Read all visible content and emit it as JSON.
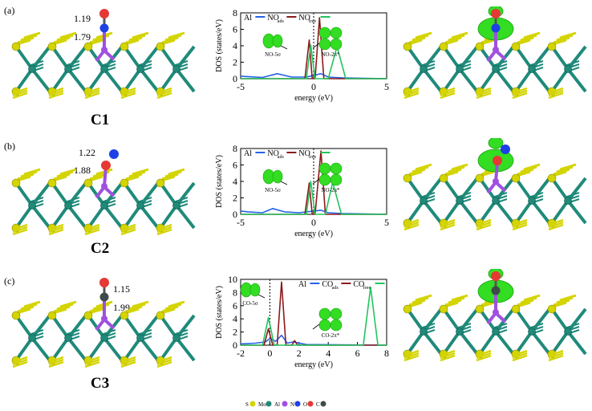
{
  "panels": [
    {
      "label": "(a)",
      "config": "C1",
      "bonds": [
        "1.19",
        "1.79"
      ],
      "molecule_top_color": "#e53935",
      "molecule_mid_color": "#1e40e6",
      "chart": {
        "type": "line",
        "ylabel": "DOS (states/eV)",
        "xlabel": "energy (eV)",
        "xlim": [
          -5,
          5
        ],
        "ylim": [
          0,
          8
        ],
        "xticks": [
          "-5",
          "0",
          "5"
        ],
        "yticks": [
          "0",
          "2",
          "4",
          "6",
          "8"
        ],
        "legend": [
          {
            "text": "Al",
            "sub": "",
            "color": "#2563eb"
          },
          {
            "text": "NO",
            "sub": "ads",
            "color": "#8b1a1a"
          },
          {
            "text": "NO",
            "sub": "free",
            "color": "#22c55e"
          }
        ],
        "orbital_labels": [
          "NO-5σ",
          "NO-2π*"
        ],
        "series": [
          {
            "color": "#2563eb",
            "points": [
              [
                -5,
                0.3
              ],
              [
                -4.5,
                0.25
              ],
              [
                -3.5,
                0.15
              ],
              [
                -2.5,
                0.6
              ],
              [
                -1.5,
                0.2
              ],
              [
                -0.5,
                0.2
              ],
              [
                0,
                0.4
              ],
              [
                0.5,
                0.6
              ],
              [
                1,
                0.2
              ],
              [
                2,
                0.1
              ],
              [
                5,
                0
              ]
            ]
          },
          {
            "color": "#8b1a1a",
            "points": [
              [
                -5,
                0
              ],
              [
                -0.6,
                0
              ],
              [
                -0.3,
                4.7
              ],
              [
                -0.1,
                0
              ],
              [
                0.1,
                0
              ],
              [
                0.4,
                7.4
              ],
              [
                0.7,
                0
              ],
              [
                5,
                0
              ]
            ]
          },
          {
            "color": "#22c55e",
            "points": [
              [
                -5,
                0
              ],
              [
                -0.5,
                0
              ],
              [
                -0.2,
                4.1
              ],
              [
                0.1,
                0
              ],
              [
                1.0,
                0
              ],
              [
                1.6,
                3.9
              ],
              [
                2.2,
                0
              ],
              [
                5,
                0
              ]
            ]
          }
        ]
      }
    },
    {
      "label": "(b)",
      "config": "C2",
      "bonds": [
        "1.22",
        "1.88"
      ],
      "molecule_top_color": "#1e40e6",
      "molecule_mid_color": "#e53935",
      "chart": {
        "type": "line",
        "ylabel": "DOS (states/eV)",
        "xlabel": "energy (eV)",
        "xlim": [
          -5,
          5
        ],
        "ylim": [
          0,
          8
        ],
        "xticks": [
          "-5",
          "0",
          "5"
        ],
        "yticks": [
          "0",
          "2",
          "4",
          "6",
          "8"
        ],
        "legend": [
          {
            "text": "Al",
            "sub": "",
            "color": "#2563eb"
          },
          {
            "text": "NO",
            "sub": "ads",
            "color": "#8b1a1a"
          },
          {
            "text": "NO",
            "sub": "free",
            "color": "#22c55e"
          }
        ],
        "orbital_labels": [
          "NO-5σ",
          "NO-2π*"
        ],
        "series": [
          {
            "color": "#2563eb",
            "points": [
              [
                -5,
                0.4
              ],
              [
                -4.5,
                0.3
              ],
              [
                -3.5,
                0.2
              ],
              [
                -2.8,
                0.7
              ],
              [
                -2,
                0.3
              ],
              [
                -1,
                0.2
              ],
              [
                0,
                0.4
              ],
              [
                0.5,
                0.5
              ],
              [
                1,
                0.2
              ],
              [
                2,
                0.1
              ],
              [
                5,
                0
              ]
            ]
          },
          {
            "color": "#8b1a1a",
            "points": [
              [
                -5,
                0
              ],
              [
                -0.6,
                0
              ],
              [
                -0.3,
                3.8
              ],
              [
                -0.1,
                0
              ],
              [
                0.1,
                0
              ],
              [
                0.5,
                7.7
              ],
              [
                0.8,
                0
              ],
              [
                5,
                0
              ]
            ]
          },
          {
            "color": "#22c55e",
            "points": [
              [
                -5,
                0
              ],
              [
                -0.5,
                0
              ],
              [
                -0.2,
                4.0
              ],
              [
                0.1,
                0
              ],
              [
                0.8,
                0
              ],
              [
                1.3,
                3.9
              ],
              [
                1.9,
                0
              ],
              [
                5,
                0
              ]
            ]
          }
        ]
      }
    },
    {
      "label": "(c)",
      "config": "C3",
      "bonds": [
        "1.15",
        "1.99"
      ],
      "molecule_top_color": "#e53935",
      "molecule_mid_color": "#3f4a4a",
      "chart": {
        "type": "line",
        "ylabel": "DOS (states/eV)",
        "xlabel": "energy (eV)",
        "xlim": [
          -2,
          8
        ],
        "ylim": [
          0,
          10
        ],
        "xticks": [
          "-2",
          "0",
          "2",
          "4",
          "6",
          "8"
        ],
        "yticks": [
          "0",
          "2",
          "4",
          "6",
          "8",
          "10"
        ],
        "legend": [
          {
            "text": "Al",
            "sub": "",
            "color": "#2563eb"
          },
          {
            "text": "CO",
            "sub": "ads",
            "color": "#8b1a1a"
          },
          {
            "text": "CO",
            "sub": "free",
            "color": "#22c55e"
          }
        ],
        "orbital_labels": [
          "CO-5σ",
          "CO-2π*"
        ],
        "series": [
          {
            "color": "#2563eb",
            "points": [
              [
                -2,
                0.2
              ],
              [
                -1,
                0.3
              ],
              [
                -0.3,
                0.5
              ],
              [
                0,
                1.0
              ],
              [
                0.4,
                0.6
              ],
              [
                0.8,
                1.5
              ],
              [
                1.2,
                0.3
              ],
              [
                1.6,
                0.5
              ],
              [
                2.5,
                0.1
              ],
              [
                8,
                0
              ]
            ]
          },
          {
            "color": "#8b1a1a",
            "points": [
              [
                -2,
                0
              ],
              [
                -0.4,
                0
              ],
              [
                -0.1,
                2.5
              ],
              [
                0.2,
                0
              ],
              [
                0.5,
                0
              ],
              [
                0.8,
                9.6
              ],
              [
                1.1,
                0
              ],
              [
                1.5,
                0
              ],
              [
                1.7,
                0.7
              ],
              [
                1.9,
                0
              ],
              [
                8,
                0
              ]
            ]
          },
          {
            "color": "#22c55e",
            "points": [
              [
                -2,
                0
              ],
              [
                -0.5,
                0
              ],
              [
                -0.1,
                4.2
              ],
              [
                0.3,
                0
              ],
              [
                6.4,
                0
              ],
              [
                6.9,
                8.8
              ],
              [
                7.4,
                0
              ],
              [
                8,
                0
              ]
            ]
          }
        ]
      }
    }
  ],
  "legend_atoms": [
    {
      "text": "S",
      "color": "#d4d400"
    },
    {
      "text": "Mo",
      "color": "#1f8a7a"
    },
    {
      "text": "Al",
      "color": "#a050e0"
    },
    {
      "text": "N",
      "color": "#1e40e6"
    },
    {
      "text": "O",
      "color": "#e53935"
    },
    {
      "text": "C",
      "color": "#3f4a4a"
    }
  ],
  "colors": {
    "sulfur": "#d4d400",
    "sulfur_dark": "#8a8a00",
    "molybdenum": "#1f8a7a",
    "aluminum": "#a050e0",
    "orbital": "#33dd22",
    "orbital_dark": "#18a010"
  }
}
